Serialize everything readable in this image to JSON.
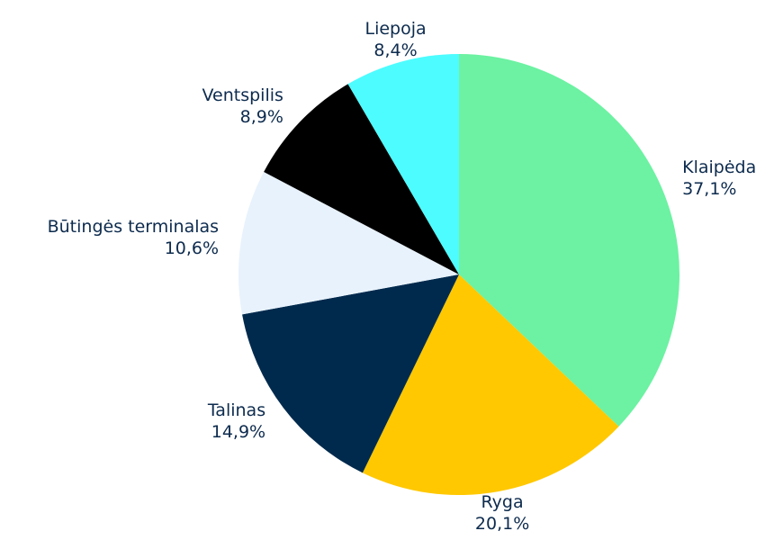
{
  "chart_data": {
    "type": "pie",
    "categories": [
      "Klaipėda",
      "Ryga",
      "Talinas",
      "Būtingės terminalas",
      "Ventspilis",
      "Liepoja"
    ],
    "values": [
      37.1,
      20.1,
      14.9,
      10.6,
      8.9,
      8.4
    ],
    "value_labels": [
      "37,1%",
      "20,1%",
      "14,9%",
      "10,6%",
      "8,9%",
      "8,4%"
    ],
    "colors": [
      "#6cf2a2",
      "#ffc800",
      "#002a4d",
      "#e8f2fc",
      "#000000",
      "#4dfcff"
    ]
  }
}
